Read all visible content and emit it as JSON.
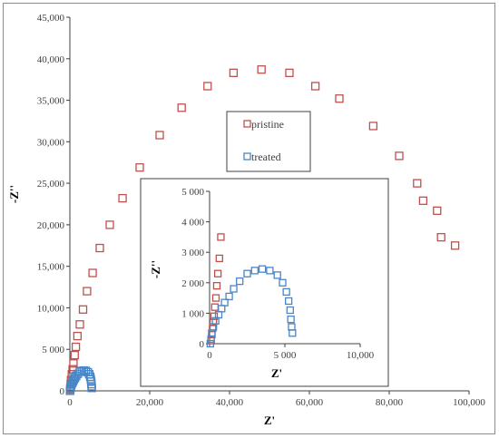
{
  "chart_data": [
    {
      "type": "scatter",
      "xlabel": "Z'",
      "ylabel": "-Z''",
      "xlim": [
        0,
        100000
      ],
      "ylim": [
        0,
        45000
      ],
      "xticks": [
        "0",
        "20,000",
        "40,000",
        "60,000",
        "80,000",
        "100,000"
      ],
      "yticks": [
        "0",
        "5 000",
        "10,000",
        "15,000",
        "20,000",
        "25,000",
        "30,000",
        "35,000",
        "40,000",
        "45,000"
      ],
      "legend": {
        "position": "center",
        "entries": [
          "pristine",
          "treated"
        ]
      },
      "series": [
        {
          "name": "pristine",
          "color": "#c0504d",
          "marker": "open-square",
          "x": [
            100,
            200,
            300,
            500,
            700,
            900,
            1200,
            1500,
            1900,
            2500,
            3300,
            4300,
            5700,
            7500,
            10000,
            13200,
            17500,
            22500,
            28000,
            34500,
            41000,
            48000,
            55000,
            61500,
            67500,
            76000,
            82500,
            87000,
            88500,
            92000,
            93000,
            96500
          ],
          "y": [
            300,
            800,
            1300,
            2000,
            2600,
            3300,
            4300,
            5300,
            6600,
            8000,
            9800,
            12000,
            14200,
            17200,
            20000,
            23200,
            26900,
            30800,
            34100,
            36700,
            38300,
            38700,
            38300,
            36700,
            35200,
            31900,
            28300,
            25000,
            22900,
            21700,
            18500,
            17500
          ]
        },
        {
          "name": "treated",
          "color": "#4a86c5",
          "marker": "open-square",
          "x": [
            50,
            100,
            150,
            250,
            400,
            600,
            800,
            1000,
            1300,
            1600,
            2000,
            2500,
            3000,
            3500,
            4000,
            4500,
            4850,
            5100,
            5250,
            5350,
            5400,
            5450,
            5500
          ],
          "y": [
            0,
            150,
            350,
            550,
            750,
            950,
            1150,
            1350,
            1550,
            1800,
            2050,
            2300,
            2400,
            2450,
            2400,
            2250,
            2000,
            1700,
            1400,
            1100,
            800,
            550,
            350
          ]
        }
      ]
    },
    {
      "type": "scatter",
      "xlabel": "Z'",
      "ylabel": "-Z''",
      "xlim": [
        0,
        10000
      ],
      "ylim": [
        0,
        5000
      ],
      "xticks": [
        "0",
        "5 000",
        "10,000"
      ],
      "yticks": [
        "0",
        "1 000",
        "2 000",
        "3 000",
        "4 000",
        "5 000"
      ],
      "series": [
        {
          "name": "pristine",
          "color": "#c0504d",
          "marker": "open-square",
          "x": [
            100,
            150,
            200,
            250,
            300,
            350,
            420,
            480,
            550,
            650,
            750
          ],
          "y": [
            100,
            300,
            500,
            700,
            900,
            1200,
            1500,
            1900,
            2300,
            2800,
            3500
          ]
        },
        {
          "name": "treated",
          "color": "#4a86c5",
          "marker": "open-square",
          "x": [
            50,
            100,
            150,
            250,
            400,
            600,
            800,
            1000,
            1300,
            1600,
            2000,
            2500,
            3000,
            3500,
            4000,
            4500,
            4850,
            5100,
            5250,
            5350,
            5400,
            5450,
            5500
          ],
          "y": [
            0,
            150,
            350,
            550,
            750,
            950,
            1150,
            1350,
            1550,
            1800,
            2050,
            2300,
            2400,
            2450,
            2400,
            2250,
            2000,
            1700,
            1400,
            1100,
            800,
            550,
            350
          ]
        }
      ]
    }
  ]
}
